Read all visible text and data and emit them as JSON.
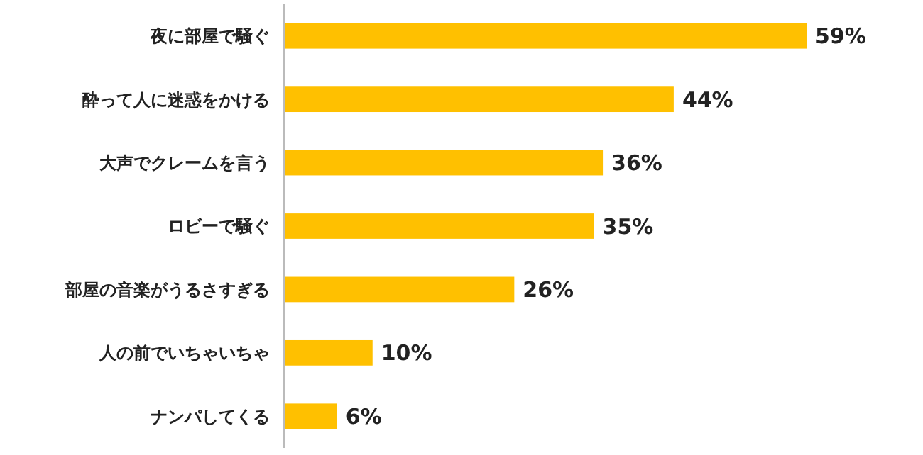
{
  "chart_data": {
    "type": "bar",
    "orientation": "horizontal",
    "categories": [
      "夜に部屋で騒ぐ",
      "酔って人に迷惑をかける",
      "大声でクレームを言う",
      "ロビーで騒ぐ",
      "部屋の音楽がうるさすぎる",
      "人の前でいちゃいちゃ",
      "ナンパしてくる"
    ],
    "values": [
      59,
      44,
      36,
      35,
      26,
      10,
      6
    ],
    "value_labels": [
      "59%",
      "44%",
      "36%",
      "35%",
      "26%",
      "10%",
      "6%"
    ],
    "color": "#ffc000"
  }
}
